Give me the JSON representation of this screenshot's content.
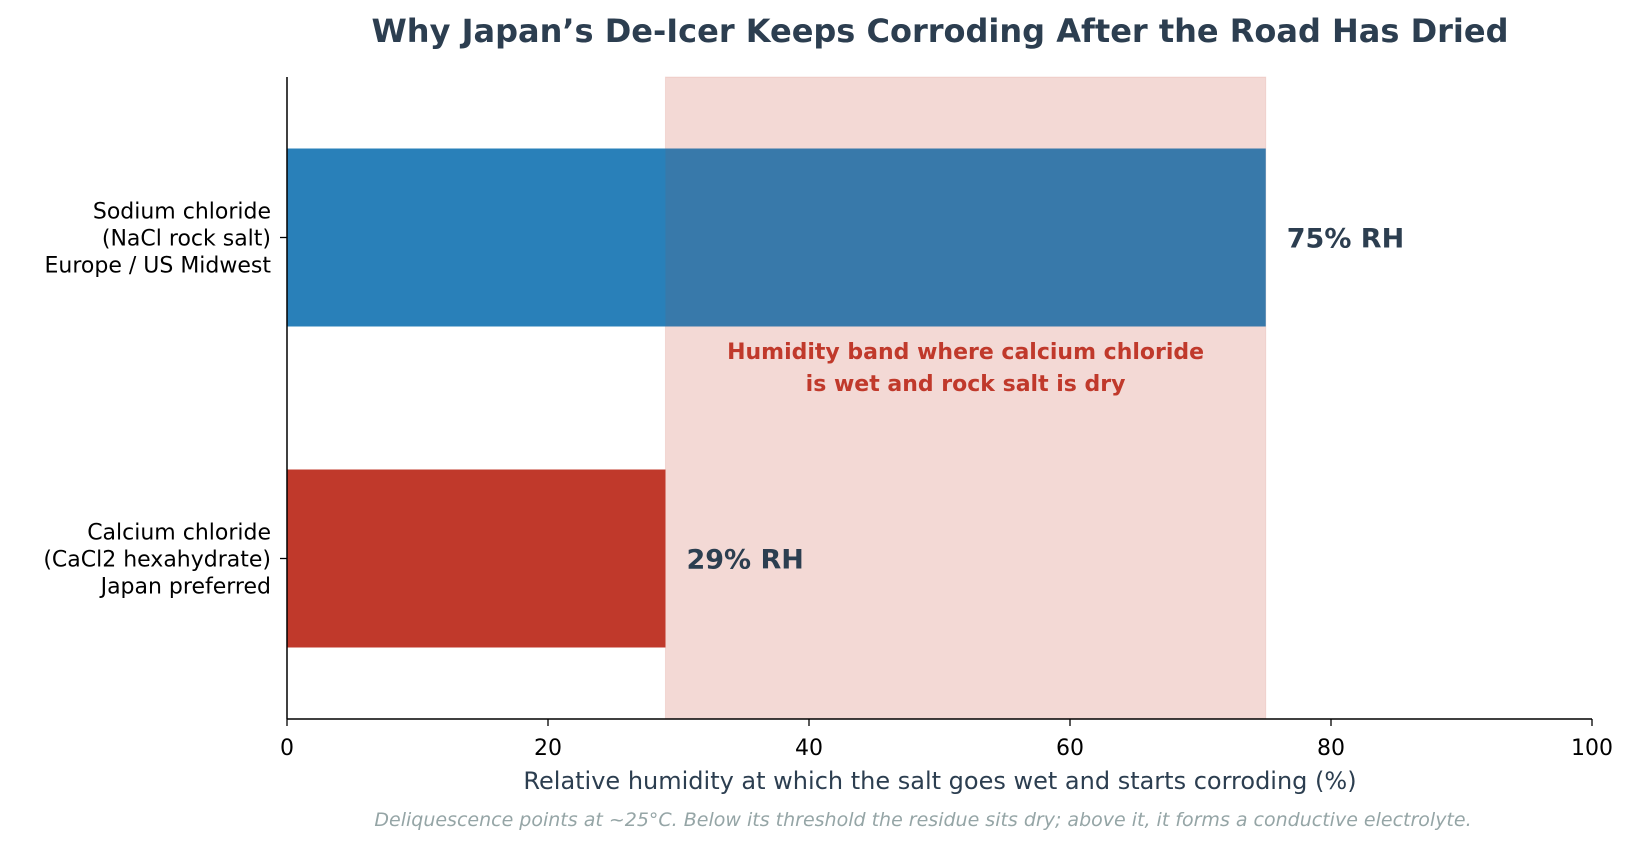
{
  "chart_data": {
    "type": "bar",
    "orientation": "horizontal",
    "title": "Why Japan’s De-Icer Keeps Corroding After the Road Has Dried",
    "xlabel": "Relative humidity at which the salt goes wet and starts corroding (%)",
    "ylabel": "",
    "xlim": [
      0,
      100
    ],
    "xticks": [
      0,
      20,
      40,
      60,
      80,
      100
    ],
    "grid": false,
    "categories": [
      {
        "lines": [
          "Sodium chloride",
          "(NaCl rock salt)",
          "Europe / US Midwest"
        ],
        "value": 75,
        "value_label": "75% RH",
        "color": "#2980b9"
      },
      {
        "lines": [
          "Calcium chloride",
          "(CaCl2 hexahydrate)",
          "Japan preferred"
        ],
        "value": 29,
        "value_label": "29% RH",
        "color": "#c0392b"
      }
    ],
    "band": {
      "from": 29,
      "to": 75,
      "color": "#c0392b",
      "label_lines": [
        "Humidity band where calcium chloride",
        "is wet and rock salt is dry"
      ]
    },
    "caption": "Deliquescence points at ~25°C. Below its threshold the residue sits dry; above it, it forms a conductive electrolyte."
  }
}
